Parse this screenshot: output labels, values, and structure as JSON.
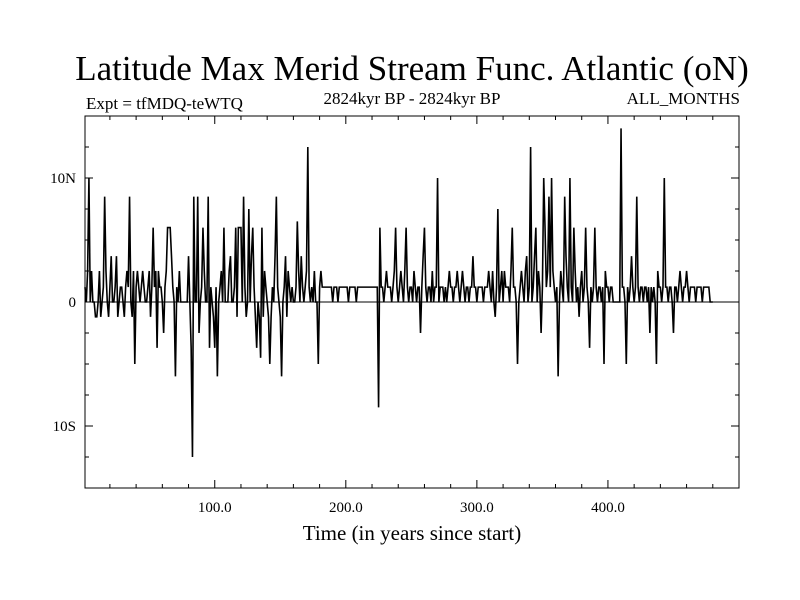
{
  "chart_data": {
    "type": "line",
    "title": "Latitude Max Merid Stream Func. Atlantic (oN)",
    "subtitle_left": "Expt = tfMDQ-teWTQ",
    "subtitle_center": "2824kyr BP - 2824kyr BP",
    "subtitle_right": "ALL_MONTHS",
    "xlabel": "Time (in years since start)",
    "ylabel": "",
    "xlim": [
      1,
      500
    ],
    "ylim": [
      -15,
      15
    ],
    "grid": false,
    "legend": "none",
    "x_ticks": [
      {
        "value": 100,
        "label": "100.0"
      },
      {
        "value": 200,
        "label": "200.0"
      },
      {
        "value": 300,
        "label": "300.0"
      },
      {
        "value": 400,
        "label": "400.0"
      }
    ],
    "y_ticks": [
      {
        "value": 10,
        "label": "10N"
      },
      {
        "value": 0,
        "label": "0"
      },
      {
        "value": -10,
        "label": "10S"
      }
    ],
    "reference_line": 0,
    "series": [
      {
        "x_start": 1,
        "x_step": 1,
        "values": [
          1.2,
          0,
          2.5,
          10,
          0,
          2.5,
          0,
          0,
          -1.2,
          -1.2,
          0,
          2.5,
          -1.2,
          0,
          1.2,
          8.5,
          2.5,
          0,
          -1.2,
          1.2,
          3.7,
          0,
          0,
          1.2,
          3.7,
          -1.2,
          0,
          1.2,
          1.2,
          0,
          -1.2,
          1.2,
          2.5,
          1.2,
          8.5,
          0,
          -1.2,
          2.5,
          -5,
          1.2,
          2.5,
          1.2,
          0,
          1.2,
          2.5,
          1.2,
          0,
          0,
          1.2,
          2.5,
          -1.2,
          1.2,
          6,
          1.2,
          2.5,
          -3.7,
          2.5,
          1.2,
          1.2,
          0,
          -2.5,
          1.2,
          2.5,
          6,
          6,
          6,
          3.7,
          1.2,
          0,
          -6,
          1.2,
          0,
          2.5,
          0,
          0,
          0,
          0,
          0,
          0,
          3.7,
          0,
          -3.7,
          -12.5,
          8.5,
          0,
          0,
          8.5,
          -2.5,
          0,
          1.2,
          6,
          2.5,
          0,
          0,
          8.5,
          -3.7,
          1.2,
          0,
          -1.2,
          -3.7,
          1.2,
          -6,
          0,
          1.2,
          2.5,
          0,
          6,
          0,
          0,
          0,
          2.5,
          3.7,
          0,
          0,
          1.2,
          6,
          -1.2,
          6,
          6,
          6,
          0,
          8.5,
          1.2,
          -1.2,
          0,
          7.5,
          0,
          3.7,
          6,
          1.2,
          -1.2,
          -3.7,
          0,
          -1.2,
          -4.5,
          6,
          -1.2,
          2.5,
          1.2,
          0,
          -1.2,
          -5,
          -1.2,
          1.2,
          0,
          3.7,
          8.5,
          1.2,
          0,
          -1.2,
          -6,
          0,
          1.2,
          3.7,
          -1.2,
          2.5,
          1.2,
          0,
          1.2,
          0,
          0,
          1.2,
          6.5,
          2.5,
          0,
          3.7,
          1.2,
          0,
          1.2,
          2.5,
          12.5,
          1.2,
          0,
          1.2,
          0,
          2.5,
          0,
          0,
          -5,
          1.2,
          2.5,
          1.2,
          1.2,
          1.2,
          1.2,
          1.2,
          1.2,
          1.2,
          1.2,
          0,
          1.2,
          1.2,
          1.2,
          0,
          1.2,
          1.2,
          1.2,
          1.2,
          1.2,
          1.2,
          1.2,
          0,
          1.2,
          1.2,
          1.2,
          1.2,
          1.2,
          0,
          1.2,
          1.2,
          1.2,
          1.2,
          1.2,
          1.2,
          1.2,
          1.2,
          1.2,
          1.2,
          1.2,
          1.2,
          1.2,
          1.2,
          1.2,
          1.2,
          -8.5,
          6,
          1.2,
          1.2,
          0,
          1.2,
          2.5,
          1.2,
          1.2,
          1.2,
          0,
          1.2,
          2.5,
          6,
          1.2,
          0,
          1.2,
          2.5,
          1.2,
          0,
          2.5,
          6,
          1.2,
          0,
          1.2,
          1.2,
          0,
          2.5,
          1.2,
          0,
          1.2,
          1.2,
          -2.5,
          1.2,
          3.7,
          6,
          1.2,
          0,
          1.2,
          1.2,
          0,
          2.5,
          0,
          1.2,
          1.2,
          10,
          0,
          1.2,
          1.2,
          1.2,
          0,
          1.2,
          0,
          1.2,
          2.5,
          1.2,
          1.2,
          0,
          1.2,
          1.2,
          2.5,
          1.2,
          0,
          1.2,
          2.5,
          1.2,
          0,
          1.2,
          1.2,
          0,
          1.2,
          1.2,
          3.7,
          1.2,
          1.2,
          0,
          1.2,
          1.2,
          1.2,
          1.2,
          0,
          1.2,
          1.2,
          1.2,
          2.5,
          1.2,
          0,
          2.5,
          0,
          -1.2,
          1.2,
          7.5,
          0,
          1.2,
          2.5,
          0,
          2.5,
          1.2,
          1.2,
          1.2,
          0,
          2.5,
          6,
          1.2,
          1.2,
          0,
          -5,
          0,
          1.2,
          2.5,
          1.2,
          0,
          2.5,
          3.7,
          0,
          1.2,
          12.5,
          0,
          1.2,
          3.7,
          6,
          0,
          2.5,
          1.2,
          -2.5,
          1.2,
          10,
          6,
          1.2,
          2.5,
          8.5,
          1.2,
          10,
          2.5,
          1.2,
          0,
          1.2,
          -6,
          0,
          2.5,
          1.2,
          0,
          8.5,
          3.7,
          1.2,
          0,
          10,
          1.2,
          0,
          6,
          2.5,
          0,
          1.2,
          -1.2,
          1.2,
          2.5,
          0,
          1.2,
          6,
          1.2,
          0,
          -3.7,
          1.2,
          0,
          1.2,
          6,
          1.2,
          0,
          1.2,
          1.2,
          0,
          1.2,
          -5,
          2.5,
          1.2,
          1.2,
          0,
          1.2,
          1.2,
          0,
          0,
          0,
          0,
          0,
          0,
          14,
          1.2,
          1.2,
          0,
          -5,
          1.2,
          0,
          1.2,
          3.7,
          1.2,
          0,
          1.2,
          8.5,
          1.2,
          0,
          1.2,
          1.2,
          0,
          1.2,
          1.2,
          0,
          1.2,
          -2.5,
          1.2,
          0,
          1.2,
          0,
          -5,
          2.5,
          1.2,
          1.2,
          0,
          1.2,
          10,
          1.2,
          1.2,
          0,
          1.2,
          1.2,
          0,
          -2.5,
          1.2,
          1.2,
          0,
          1.2,
          2.5,
          1.2,
          0,
          1.2,
          1.2,
          2.5,
          1.2,
          0,
          1.2,
          1.2,
          1.2,
          1.2,
          0,
          1.2,
          1.2,
          1.2,
          1.2,
          0,
          1.2,
          1.2,
          1.2,
          1.2,
          1.2,
          0,
          0,
          0
        ]
      }
    ]
  }
}
